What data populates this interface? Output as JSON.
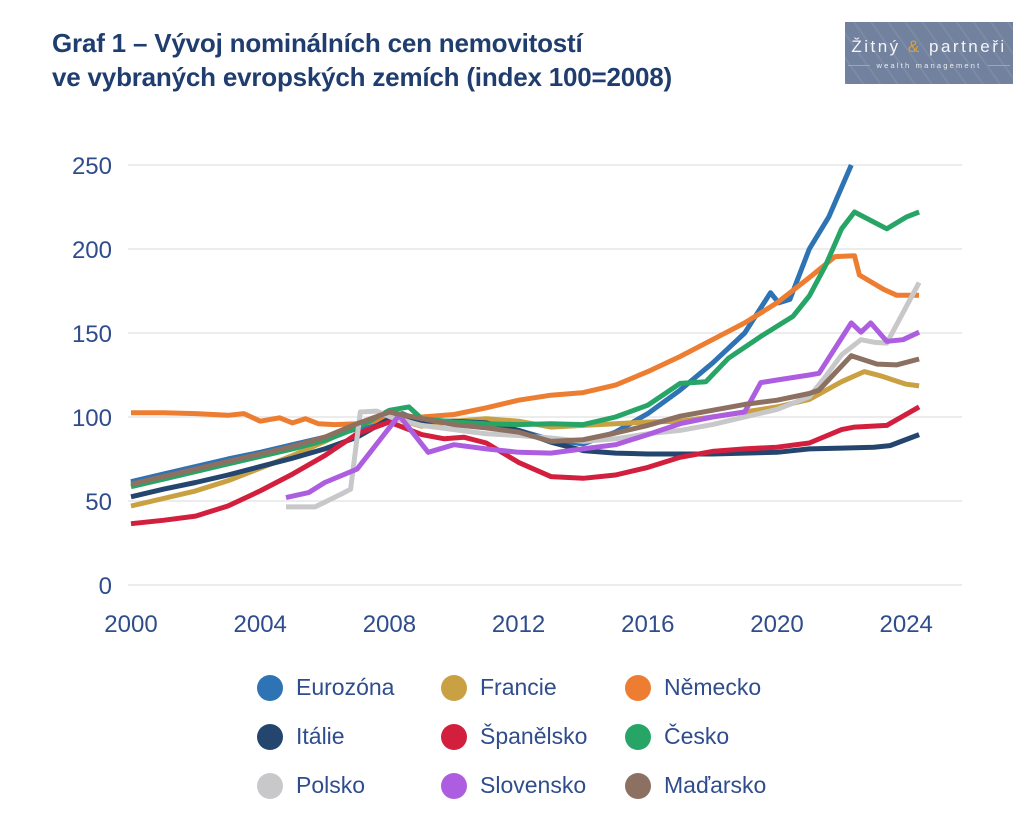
{
  "header": {
    "title_line1": "Graf 1 – Vývoj nominálních cen nemovitostí",
    "title_line2": "ve vybraných evropských zemích  (index 100=2008)"
  },
  "logo": {
    "name_part1": "Žitný",
    "amp": "&",
    "name_part2": "partneři",
    "tagline": "wealth management",
    "bg_color": "#72819e",
    "accent_color": "#d8a13e",
    "text_color": "#f4f5f7"
  },
  "colors": {
    "title_text": "#1f3d6e",
    "axis_text": "#2f4d8c",
    "gridline": "#ececec"
  },
  "legend": {
    "items": [
      {
        "key": "eurozona",
        "label": "Eurozóna",
        "color": "#2e74b5"
      },
      {
        "key": "francie",
        "label": "Francie",
        "color": "#c9a042"
      },
      {
        "key": "nemecko",
        "label": "Německo",
        "color": "#ed7d31"
      },
      {
        "key": "italie",
        "label": "Itálie",
        "color": "#24466e"
      },
      {
        "key": "spanelsko",
        "label": "Španělsko",
        "color": "#d31f3e"
      },
      {
        "key": "cesko",
        "label": "Česko",
        "color": "#27a567"
      },
      {
        "key": "polsko",
        "label": "Polsko",
        "color": "#c8c8ca"
      },
      {
        "key": "slovensko",
        "label": "Slovensko",
        "color": "#ad5ee0"
      },
      {
        "key": "madarsko",
        "label": "Maďarsko",
        "color": "#8c7061"
      }
    ]
  },
  "chart_data": {
    "type": "line",
    "title": "Vývoj nominálních cen nemovitostí ve vybraných evropských zemích",
    "index_note": "index 100=2008",
    "xlabel": "",
    "ylabel": "",
    "x_ticks": [
      2000,
      2004,
      2008,
      2012,
      2016,
      2020,
      2024
    ],
    "y_ticks": [
      0,
      50,
      100,
      150,
      200,
      250
    ],
    "xlim": [
      1999.9,
      2025.8
    ],
    "ylim": [
      0,
      250
    ],
    "grid": "horizontal",
    "legend_position": "bottom",
    "series": [
      {
        "name": "Eurozóna",
        "key": "eurozona",
        "color": "#2e74b5",
        "points": [
          [
            2000,
            61.5
          ],
          [
            2001,
            66
          ],
          [
            2002,
            70.5
          ],
          [
            2003,
            75
          ],
          [
            2004,
            79
          ],
          [
            2005,
            83.5
          ],
          [
            2006,
            88
          ],
          [
            2007,
            93
          ],
          [
            2008,
            100
          ],
          [
            2008.4,
            102
          ],
          [
            2009,
            97
          ],
          [
            2010,
            97.5
          ],
          [
            2011,
            96.5
          ],
          [
            2012,
            92
          ],
          [
            2013,
            86.5
          ],
          [
            2014,
            84
          ],
          [
            2015,
            91
          ],
          [
            2016,
            102
          ],
          [
            2017,
            116
          ],
          [
            2018,
            132
          ],
          [
            2019,
            150
          ],
          [
            2019.8,
            174
          ],
          [
            2020.05,
            168
          ],
          [
            2020.4,
            170
          ],
          [
            2021,
            200
          ],
          [
            2021.6,
            219
          ],
          [
            2022.3,
            250
          ]
        ]
      },
      {
        "name": "Francie",
        "key": "francie",
        "color": "#c9a042",
        "points": [
          [
            2000,
            47
          ],
          [
            2001,
            51.5
          ],
          [
            2002,
            56
          ],
          [
            2003,
            62
          ],
          [
            2004,
            69.5
          ],
          [
            2005,
            77
          ],
          [
            2006,
            85.5
          ],
          [
            2007,
            95
          ],
          [
            2008,
            100
          ],
          [
            2009,
            94.5
          ],
          [
            2010,
            97.5
          ],
          [
            2011,
            99
          ],
          [
            2012,
            97.5
          ],
          [
            2013,
            94
          ],
          [
            2014,
            95
          ],
          [
            2015,
            96
          ],
          [
            2016,
            97
          ],
          [
            2017,
            97.5
          ],
          [
            2018,
            100
          ],
          [
            2019,
            103
          ],
          [
            2020,
            106
          ],
          [
            2021,
            110.5
          ],
          [
            2022,
            121
          ],
          [
            2022.7,
            127
          ],
          [
            2023.2,
            124.5
          ],
          [
            2024,
            119.5
          ],
          [
            2024.4,
            118.5
          ]
        ]
      },
      {
        "name": "Německo",
        "key": "nemecko",
        "color": "#ed7d31",
        "points": [
          [
            2000,
            102.5
          ],
          [
            2001,
            102.5
          ],
          [
            2002,
            102
          ],
          [
            2003,
            101
          ],
          [
            2003.5,
            102
          ],
          [
            2004,
            97.5
          ],
          [
            2004.6,
            99.5
          ],
          [
            2005,
            96.5
          ],
          [
            2005.4,
            99
          ],
          [
            2005.8,
            96
          ],
          [
            2006.3,
            95.5
          ],
          [
            2007,
            96
          ],
          [
            2008,
            99
          ],
          [
            2009,
            100
          ],
          [
            2010,
            101.5
          ],
          [
            2011,
            105.5
          ],
          [
            2012,
            110
          ],
          [
            2013,
            113
          ],
          [
            2014,
            114.5
          ],
          [
            2015,
            119
          ],
          [
            2016,
            127
          ],
          [
            2017,
            136
          ],
          [
            2018,
            146
          ],
          [
            2019,
            156
          ],
          [
            2020,
            168
          ],
          [
            2021,
            183
          ],
          [
            2021.8,
            195.5
          ],
          [
            2022.4,
            196
          ],
          [
            2022.55,
            184.5
          ],
          [
            2023.3,
            176
          ],
          [
            2023.7,
            172.5
          ],
          [
            2024.4,
            172.5
          ]
        ]
      },
      {
        "name": "Itálie",
        "key": "italie",
        "color": "#24466e",
        "points": [
          [
            2000,
            52.5
          ],
          [
            2001,
            57
          ],
          [
            2002,
            61
          ],
          [
            2003,
            65.5
          ],
          [
            2004,
            70.5
          ],
          [
            2005,
            75.5
          ],
          [
            2006,
            81
          ],
          [
            2007,
            88
          ],
          [
            2008,
            99
          ],
          [
            2008.5,
            101
          ],
          [
            2009,
            97.5
          ],
          [
            2010,
            97.5
          ],
          [
            2011,
            96.5
          ],
          [
            2012,
            92
          ],
          [
            2013,
            85
          ],
          [
            2014,
            80
          ],
          [
            2015,
            78.5
          ],
          [
            2016,
            78
          ],
          [
            2017,
            78
          ],
          [
            2018,
            78
          ],
          [
            2019,
            78.5
          ],
          [
            2020,
            79
          ],
          [
            2021,
            81
          ],
          [
            2022,
            81.5
          ],
          [
            2023,
            82
          ],
          [
            2023.5,
            83
          ],
          [
            2024.4,
            89.5
          ]
        ]
      },
      {
        "name": "Španělsko",
        "key": "spanelsko",
        "color": "#d31f3e",
        "points": [
          [
            2000,
            36.5
          ],
          [
            2001,
            38.5
          ],
          [
            2002,
            41
          ],
          [
            2003,
            47
          ],
          [
            2004,
            56
          ],
          [
            2005,
            66
          ],
          [
            2006,
            77
          ],
          [
            2007,
            90
          ],
          [
            2008,
            97
          ],
          [
            2009,
            89.5
          ],
          [
            2009.7,
            87
          ],
          [
            2010.3,
            88
          ],
          [
            2011,
            84.5
          ],
          [
            2012,
            73
          ],
          [
            2013,
            64.5
          ],
          [
            2014,
            63.5
          ],
          [
            2015,
            65.5
          ],
          [
            2016,
            70
          ],
          [
            2017,
            76
          ],
          [
            2018,
            79.5
          ],
          [
            2019,
            81
          ],
          [
            2020,
            82
          ],
          [
            2021,
            84.5
          ],
          [
            2022,
            92.5
          ],
          [
            2022.4,
            94
          ],
          [
            2023.4,
            95
          ],
          [
            2024.4,
            106
          ]
        ]
      },
      {
        "name": "Česko",
        "key": "cesko",
        "color": "#27a567",
        "points": [
          [
            2000,
            58.5
          ],
          [
            2001,
            63
          ],
          [
            2002,
            67.5
          ],
          [
            2003,
            72
          ],
          [
            2004,
            76.5
          ],
          [
            2005,
            81
          ],
          [
            2006,
            86
          ],
          [
            2007,
            93.5
          ],
          [
            2008,
            104
          ],
          [
            2008.6,
            106
          ],
          [
            2009,
            99
          ],
          [
            2010,
            97
          ],
          [
            2011,
            96
          ],
          [
            2012,
            95.5
          ],
          [
            2013,
            96
          ],
          [
            2014,
            95.5
          ],
          [
            2015,
            100
          ],
          [
            2016,
            107
          ],
          [
            2017,
            120
          ],
          [
            2017.8,
            121
          ],
          [
            2018.5,
            135
          ],
          [
            2019.5,
            148
          ],
          [
            2020.5,
            160
          ],
          [
            2021,
            172
          ],
          [
            2021.5,
            190
          ],
          [
            2022,
            212
          ],
          [
            2022.4,
            222
          ],
          [
            2023,
            216
          ],
          [
            2023.4,
            212
          ],
          [
            2024,
            219
          ],
          [
            2024.4,
            222
          ]
        ]
      },
      {
        "name": "Polsko",
        "key": "polsko",
        "color": "#c8c8ca",
        "points": [
          [
            2004.8,
            46.5
          ],
          [
            2005.7,
            46.5
          ],
          [
            2006.5,
            54
          ],
          [
            2006.8,
            57
          ],
          [
            2007.1,
            103
          ],
          [
            2007.6,
            103.5
          ],
          [
            2008.1,
            99.5
          ],
          [
            2009,
            95
          ],
          [
            2010,
            92.5
          ],
          [
            2011,
            90
          ],
          [
            2012,
            89
          ],
          [
            2013,
            87.5
          ],
          [
            2014,
            85.5
          ],
          [
            2015,
            87
          ],
          [
            2016,
            90
          ],
          [
            2017,
            92
          ],
          [
            2018,
            95.5
          ],
          [
            2019,
            100
          ],
          [
            2020,
            104.5
          ],
          [
            2021,
            112
          ],
          [
            2021.5,
            124
          ],
          [
            2022,
            137
          ],
          [
            2022.6,
            146
          ],
          [
            2023,
            144.5
          ],
          [
            2023.4,
            144
          ],
          [
            2024.4,
            180
          ]
        ]
      },
      {
        "name": "Slovensko",
        "key": "slovensko",
        "color": "#ad5ee0",
        "points": [
          [
            2004.8,
            52
          ],
          [
            2005.5,
            55
          ],
          [
            2006,
            61
          ],
          [
            2007,
            69
          ],
          [
            2008.3,
            101
          ],
          [
            2009.2,
            79
          ],
          [
            2010,
            83.5
          ],
          [
            2011,
            81
          ],
          [
            2012,
            79
          ],
          [
            2013,
            78.5
          ],
          [
            2014,
            81
          ],
          [
            2015,
            83.5
          ],
          [
            2016,
            89.5
          ],
          [
            2017,
            96
          ],
          [
            2018,
            100
          ],
          [
            2019,
            103
          ],
          [
            2019.5,
            120.5
          ],
          [
            2020,
            122
          ],
          [
            2021,
            125
          ],
          [
            2021.3,
            126
          ],
          [
            2022.3,
            156
          ],
          [
            2022.6,
            150.5
          ],
          [
            2022.9,
            156
          ],
          [
            2023.4,
            145
          ],
          [
            2023.9,
            146
          ],
          [
            2024.4,
            150.5
          ]
        ]
      },
      {
        "name": "Maďarsko",
        "key": "madarsko",
        "color": "#8c7061",
        "points": [
          [
            2000,
            60
          ],
          [
            2001,
            64.5
          ],
          [
            2002,
            69
          ],
          [
            2003,
            73.5
          ],
          [
            2004,
            78
          ],
          [
            2005,
            82.5
          ],
          [
            2006,
            88
          ],
          [
            2007,
            96
          ],
          [
            2008,
            103
          ],
          [
            2009,
            99
          ],
          [
            2010,
            95.5
          ],
          [
            2011,
            93.5
          ],
          [
            2012,
            91
          ],
          [
            2013,
            85.5
          ],
          [
            2014,
            86.5
          ],
          [
            2015,
            90.5
          ],
          [
            2016,
            95
          ],
          [
            2017,
            100.5
          ],
          [
            2018,
            104
          ],
          [
            2019,
            107.5
          ],
          [
            2020,
            110
          ],
          [
            2021,
            114
          ],
          [
            2021.3,
            116
          ],
          [
            2022.3,
            136.5
          ],
          [
            2023.1,
            131.5
          ],
          [
            2023.7,
            131
          ],
          [
            2024.4,
            134.5
          ]
        ]
      }
    ]
  }
}
